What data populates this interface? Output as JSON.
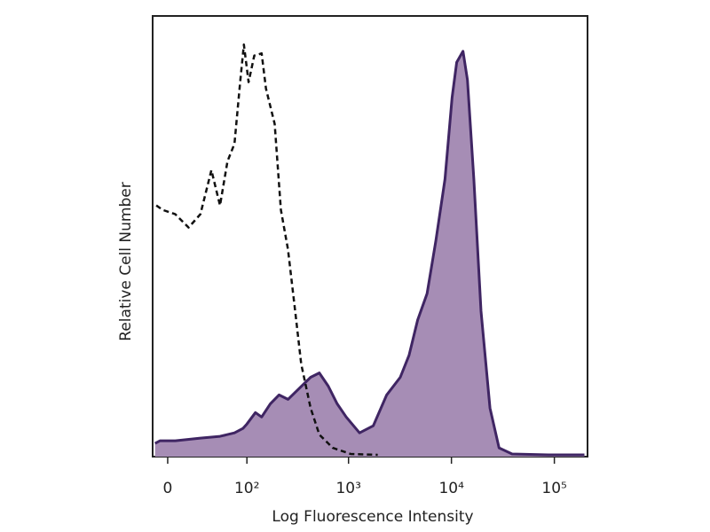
{
  "chart_data": {
    "type": "area",
    "xlabel": "Log Fluorescence Intensity",
    "ylabel": "Relative Cell Number",
    "xscale": "biexponential",
    "xlim": [
      -12,
      210000
    ],
    "xticks": [
      0,
      {
        "value": 100,
        "label": "10²"
      },
      {
        "value": 1000,
        "label": "10³"
      },
      {
        "value": 10000,
        "label": "10⁴"
      },
      {
        "value": 100000,
        "label": "10⁵"
      }
    ],
    "ylim": [
      0,
      100
    ],
    "series": [
      {
        "color": "#3f2563",
        "fill": "#a68db5",
        "x": [
          -10,
          -6,
          6,
          28,
          51,
          74,
          91,
          100,
          122,
          141,
          172,
          210,
          257,
          315,
          428,
          520,
          635,
          775,
          950,
          1280,
          1740,
          2350,
          3180,
          3870,
          4700,
          5800,
          7060,
          8650,
          10150,
          11250,
          12960,
          14300,
          16500,
          19400,
          23700,
          29000,
          38800,
          87700,
          196000
        ],
        "values": [
          3,
          3.6,
          3.6,
          4.2,
          4.6,
          5.4,
          6.4,
          7.4,
          10,
          9,
          12,
          14,
          13,
          15,
          18,
          19,
          16,
          12,
          9,
          5.4,
          7,
          14,
          18,
          23,
          31,
          37,
          49,
          63,
          81.5,
          89.5,
          92,
          85.5,
          63,
          33,
          11,
          2,
          0.6,
          0.4,
          0.4
        ]
      },
      {
        "color": "#111111",
        "dashed": true,
        "x": [
          -9,
          -4,
          6,
          17,
          28,
          40,
          51,
          62,
          74,
          85,
          93,
          104,
          119,
          141,
          156,
          190,
          219,
          257,
          302,
          346,
          428,
          520,
          702,
          1050,
          1920
        ],
        "values": [
          57,
          56,
          55,
          52,
          55,
          65,
          57,
          67,
          71,
          85,
          93.5,
          85,
          91,
          91.5,
          83.5,
          75.5,
          56,
          47,
          33,
          21,
          11,
          5,
          2,
          0.6,
          0.4
        ]
      }
    ]
  }
}
